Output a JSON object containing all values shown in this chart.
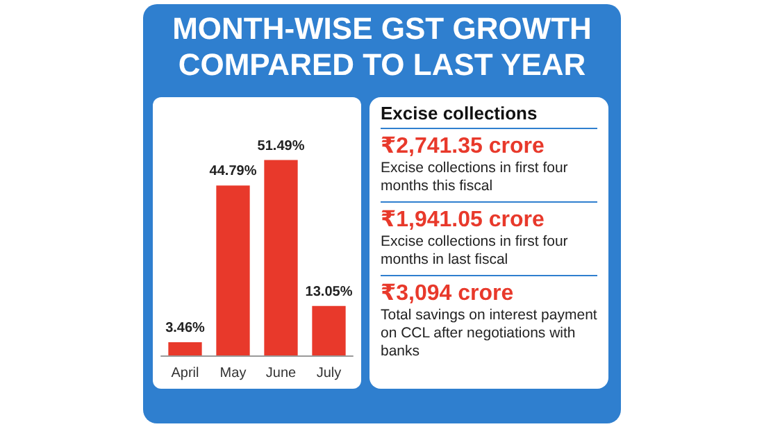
{
  "chart_data": [
    {
      "type": "bar",
      "title": "MONTH-WISE GST GROWTH COMPARED TO LAST YEAR",
      "categories": [
        "April",
        "May",
        "June",
        "July"
      ],
      "values": [
        3.46,
        44.79,
        51.49,
        13.05
      ],
      "value_labels": [
        "3.46%",
        "44.79%",
        "51.49%",
        "13.05%"
      ],
      "color": "#e8392b",
      "tick_labels": "x"
    },
    {
      "type": "other",
      "title": "Excise collections",
      "annotations": [
        "₹2,741.35 crore",
        "Excise collections in first four months this fiscal",
        "₹1,941.05 crore",
        "Excise collections in first four months in last fiscal",
        "₹3,094 crore",
        "Total savings on interest payment on CCL after negotiations with banks"
      ]
    }
  ]
}
